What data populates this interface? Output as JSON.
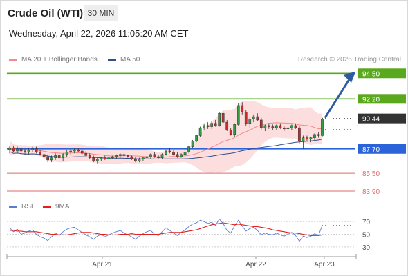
{
  "header": {
    "title": "Crude Oil (WTI)",
    "timeframe": "30 MIN",
    "timestamp": "Wednesday, April 22, 2026 11:05:20 AM CET"
  },
  "legend": {
    "ma20": {
      "label": "MA 20 + Bollinger Bands",
      "color": "#f28b8b"
    },
    "ma50": {
      "label": "MA 50",
      "color": "#2e4f8f"
    },
    "credit": "Research © 2026 Trading Central"
  },
  "rsi_legend": {
    "rsi": {
      "label": "RSI",
      "color": "#5b7bd5"
    },
    "ma9": {
      "label": "9MA",
      "color": "#e0201c"
    }
  },
  "colors": {
    "up": "#2f9e44",
    "down": "#c92a2a",
    "resistance": "#5aa81e",
    "pivot": "#2b63d9",
    "support": "#e26a6a",
    "current": "#333333",
    "arrow": "#2f5c9e"
  },
  "chart_data": {
    "type": "candlestick",
    "price_range": [
      83.4,
      95.2
    ],
    "x_ticks": [
      "Apr 21",
      "Apr 22",
      "Apr 23"
    ],
    "levels": [
      {
        "label": "94.50",
        "value": 94.5,
        "kind": "resistance"
      },
      {
        "label": "92.20",
        "value": 92.2,
        "kind": "resistance"
      },
      {
        "label": "90.44",
        "value": 90.44,
        "kind": "current"
      },
      {
        "label": "87.70",
        "value": 87.7,
        "kind": "pivot"
      },
      {
        "label": "85.50",
        "value": 85.5,
        "kind": "support"
      },
      {
        "label": "83.90",
        "value": 83.9,
        "kind": "support"
      }
    ],
    "candles": [
      [
        87.6,
        88.0,
        87.3,
        87.8
      ],
      [
        87.8,
        88.0,
        87.4,
        87.5
      ],
      [
        87.5,
        87.9,
        87.3,
        87.7
      ],
      [
        87.7,
        87.9,
        87.4,
        87.5
      ],
      [
        87.5,
        87.7,
        87.2,
        87.4
      ],
      [
        87.4,
        87.8,
        87.2,
        87.6
      ],
      [
        87.6,
        87.9,
        87.4,
        87.7
      ],
      [
        87.7,
        87.9,
        87.3,
        87.4
      ],
      [
        87.4,
        87.6,
        87.1,
        87.2
      ],
      [
        87.2,
        87.4,
        86.8,
        87.0
      ],
      [
        87.0,
        87.2,
        86.5,
        86.7
      ],
      [
        86.7,
        87.1,
        86.5,
        86.9
      ],
      [
        86.9,
        87.3,
        86.7,
        87.1
      ],
      [
        87.1,
        87.4,
        86.8,
        86.9
      ],
      [
        86.9,
        87.3,
        86.6,
        87.2
      ],
      [
        87.2,
        87.6,
        87.0,
        87.4
      ],
      [
        87.4,
        87.7,
        87.2,
        87.5
      ],
      [
        87.5,
        87.8,
        87.3,
        87.6
      ],
      [
        87.6,
        87.8,
        87.4,
        87.5
      ],
      [
        87.5,
        87.7,
        87.2,
        87.3
      ],
      [
        87.3,
        87.5,
        87.0,
        87.1
      ],
      [
        87.1,
        87.3,
        86.8,
        86.9
      ],
      [
        86.9,
        87.1,
        86.5,
        86.6
      ],
      [
        86.6,
        86.9,
        86.4,
        86.8
      ],
      [
        86.8,
        87.0,
        86.6,
        86.9
      ],
      [
        86.9,
        87.1,
        86.7,
        86.8
      ],
      [
        86.8,
        87.0,
        86.7,
        86.9
      ],
      [
        86.9,
        87.1,
        86.8,
        87.0
      ],
      [
        87.0,
        87.2,
        86.8,
        87.1
      ],
      [
        87.1,
        87.3,
        86.9,
        87.2
      ],
      [
        87.2,
        87.4,
        87.0,
        87.1
      ],
      [
        87.1,
        87.2,
        86.9,
        87.0
      ],
      [
        87.0,
        87.1,
        86.7,
        86.8
      ],
      [
        86.8,
        87.0,
        86.5,
        86.6
      ],
      [
        86.6,
        86.9,
        86.5,
        86.8
      ],
      [
        86.8,
        87.0,
        86.6,
        86.9
      ],
      [
        86.9,
        87.2,
        86.7,
        87.0
      ],
      [
        87.0,
        87.3,
        86.8,
        87.2
      ],
      [
        87.2,
        87.4,
        86.9,
        87.0
      ],
      [
        87.0,
        87.2,
        86.8,
        86.9
      ],
      [
        86.9,
        87.3,
        86.8,
        87.2
      ],
      [
        87.2,
        87.6,
        87.1,
        87.5
      ],
      [
        87.5,
        87.8,
        87.3,
        87.4
      ],
      [
        87.4,
        87.6,
        87.1,
        87.2
      ],
      [
        87.2,
        87.4,
        86.9,
        87.0
      ],
      [
        87.0,
        87.3,
        86.9,
        87.2
      ],
      [
        87.2,
        87.5,
        87.0,
        87.4
      ],
      [
        87.4,
        88.0,
        87.3,
        87.9
      ],
      [
        87.9,
        88.5,
        87.8,
        88.4
      ],
      [
        88.4,
        89.0,
        88.3,
        88.9
      ],
      [
        88.9,
        89.7,
        88.8,
        89.6
      ],
      [
        89.6,
        90.0,
        89.4,
        89.8
      ],
      [
        89.8,
        90.1,
        89.5,
        89.7
      ],
      [
        89.7,
        90.2,
        89.5,
        90.0
      ],
      [
        90.0,
        90.3,
        89.7,
        89.8
      ],
      [
        89.8,
        91.0,
        89.7,
        90.9
      ],
      [
        90.9,
        91.2,
        90.0,
        90.1
      ],
      [
        90.1,
        90.3,
        89.3,
        89.4
      ],
      [
        89.4,
        89.6,
        88.9,
        89.0
      ],
      [
        89.0,
        90.0,
        88.8,
        89.9
      ],
      [
        89.9,
        91.8,
        89.8,
        91.6
      ],
      [
        91.6,
        91.9,
        90.8,
        91.0
      ],
      [
        91.0,
        91.2,
        89.8,
        90.0
      ],
      [
        90.0,
        90.6,
        89.6,
        90.4
      ],
      [
        90.4,
        90.8,
        90.1,
        90.6
      ],
      [
        90.6,
        90.9,
        90.2,
        90.3
      ],
      [
        90.3,
        90.5,
        89.4,
        89.6
      ],
      [
        89.6,
        89.9,
        89.3,
        89.8
      ],
      [
        89.8,
        90.0,
        89.5,
        89.7
      ],
      [
        89.7,
        89.9,
        89.4,
        89.6
      ],
      [
        89.6,
        89.9,
        89.4,
        89.8
      ],
      [
        89.8,
        90.0,
        89.5,
        89.6
      ],
      [
        89.6,
        89.8,
        89.3,
        89.5
      ],
      [
        89.5,
        89.7,
        89.2,
        89.6
      ],
      [
        89.6,
        89.9,
        89.4,
        89.8
      ],
      [
        89.8,
        90.0,
        89.5,
        89.6
      ],
      [
        89.6,
        89.8,
        88.2,
        88.4
      ],
      [
        88.4,
        88.9,
        87.7,
        88.7
      ],
      [
        88.7,
        88.9,
        88.4,
        88.6
      ],
      [
        88.6,
        88.8,
        88.3,
        88.7
      ],
      [
        88.7,
        89.1,
        88.5,
        89.0
      ],
      [
        89.0,
        89.2,
        88.7,
        88.9
      ],
      [
        88.9,
        90.5,
        88.8,
        90.4
      ]
    ],
    "rsi": {
      "levels": [
        70,
        50,
        30
      ],
      "range": [
        20,
        80
      ],
      "rsi_values": [
        60,
        54,
        58,
        50,
        52,
        55,
        57,
        50,
        46,
        44,
        40,
        46,
        52,
        48,
        54,
        58,
        60,
        61,
        57,
        53,
        49,
        46,
        42,
        47,
        50,
        46,
        49,
        52,
        54,
        56,
        52,
        49,
        46,
        42,
        47,
        51,
        54,
        56,
        50,
        48,
        54,
        60,
        56,
        52,
        48,
        53,
        57,
        62,
        66,
        68,
        72,
        70,
        67,
        69,
        64,
        74,
        67,
        56,
        52,
        63,
        72,
        63,
        55,
        59,
        61,
        56,
        49,
        52,
        50,
        49,
        52,
        49,
        47,
        50,
        53,
        48,
        39,
        47,
        45,
        47,
        51,
        48,
        64
      ],
      "ma9_values": [
        56,
        56,
        55,
        55,
        54,
        54,
        54,
        54,
        53,
        52,
        51,
        50,
        50,
        49,
        49,
        49,
        50,
        51,
        52,
        53,
        53,
        53,
        52,
        51,
        50,
        50,
        49,
        49,
        49,
        50,
        50,
        50,
        51,
        50,
        50,
        50,
        50,
        50,
        50,
        50,
        51,
        52,
        53,
        53,
        53,
        53,
        54,
        55,
        56,
        57,
        59,
        61,
        63,
        65,
        66,
        67,
        68,
        67,
        66,
        65,
        66,
        65,
        64,
        63,
        62,
        62,
        61,
        60,
        59,
        57,
        56,
        55,
        54,
        53,
        52,
        52,
        51,
        50,
        49,
        48,
        48,
        48,
        49
      ]
    }
  }
}
